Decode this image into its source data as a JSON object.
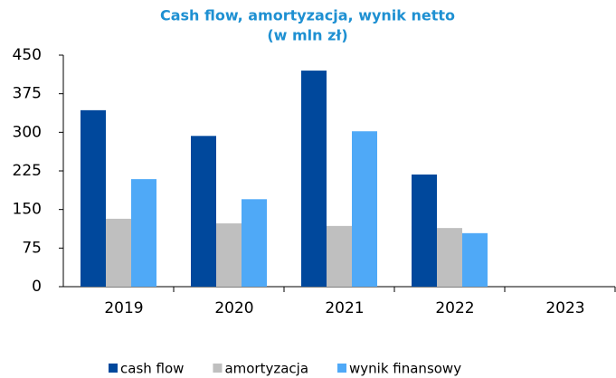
{
  "chart_data": {
    "type": "bar",
    "title": "Cash flow, amortyzacja, wynik netto",
    "subtitle": "(w mln zł)",
    "categories": [
      "2019",
      "2020",
      "2021",
      "2022",
      "2023"
    ],
    "series": [
      {
        "name": "cash flow",
        "color": "#00489c",
        "values": [
          343,
          293,
          420,
          218,
          null
        ]
      },
      {
        "name": "amortyzacja",
        "color": "#bfbfbf",
        "values": [
          132,
          123,
          118,
          114,
          null
        ]
      },
      {
        "name": "wynik finansowy",
        "color": "#4fa9f7",
        "values": [
          209,
          170,
          302,
          104,
          null
        ]
      }
    ],
    "ylim": [
      0,
      450
    ],
    "yticks": [
      0,
      75,
      150,
      225,
      300,
      375,
      450
    ],
    "legend": "bottom"
  }
}
